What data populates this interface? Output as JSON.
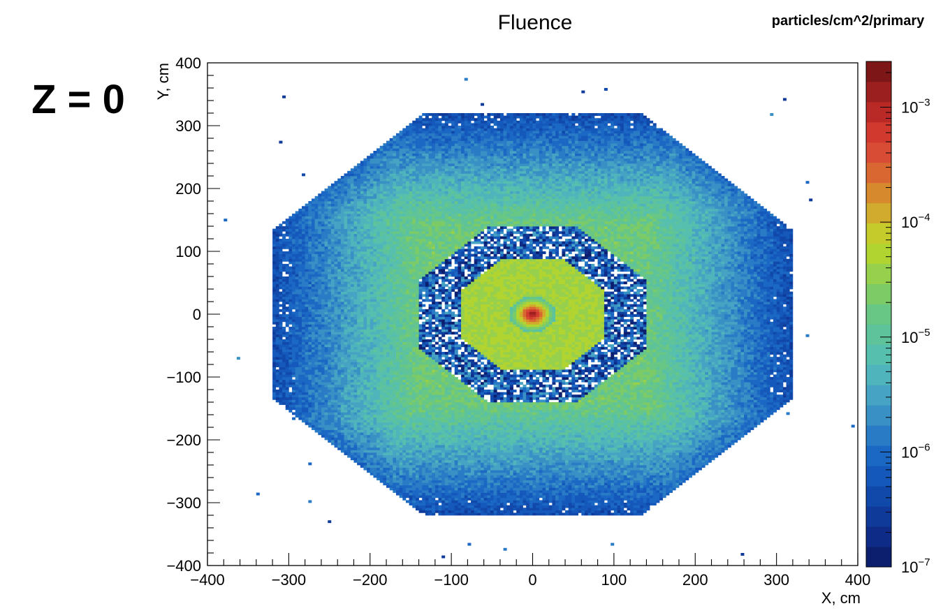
{
  "colors": {
    "background": "#ffffff",
    "axis": "#000000",
    "palette": [
      "#0c1f6f",
      "#0e2c87",
      "#0f3a9a",
      "#1149ab",
      "#1558bb",
      "#1b68c4",
      "#2a7bc6",
      "#3890c4",
      "#46a3c3",
      "#4fb4bb",
      "#56bfae",
      "#5ec39a",
      "#68c784",
      "#7ccb67",
      "#96d04c",
      "#b2d431",
      "#c5cb2a",
      "#d1ab2d",
      "#d78a2d",
      "#d86731",
      "#d84b34",
      "#d1392f",
      "#b92a27",
      "#9c1f1f",
      "#7d1616"
    ]
  },
  "annotations": {
    "title": "Fluence",
    "unit_label": "particles/cm^2/primary",
    "z_label": "Z = 0"
  },
  "chart_data": {
    "type": "heatmap",
    "title": "Fluence",
    "xlabel": "X, cm",
    "ylabel": "Y, cm",
    "xlim": [
      -400,
      400
    ],
    "ylim": [
      -400,
      400
    ],
    "x_ticks": [
      -400,
      -300,
      -200,
      -100,
      0,
      100,
      200,
      300,
      400
    ],
    "y_ticks": [
      -400,
      -300,
      -200,
      -100,
      0,
      100,
      200,
      300,
      400
    ],
    "colorbar": {
      "label": "particles/cm^2/primary",
      "scale": "log",
      "range": [
        1e-07,
        0.0025
      ],
      "ticks": [
        {
          "value": 1e-07,
          "base": "10",
          "exp": "−7"
        },
        {
          "value": 1e-06,
          "base": "10",
          "exp": "−6"
        },
        {
          "value": 1e-05,
          "base": "10",
          "exp": "−5"
        },
        {
          "value": 0.0001,
          "base": "10",
          "exp": "−4"
        },
        {
          "value": 0.001,
          "base": "10",
          "exp": "−3"
        }
      ]
    },
    "regions": [
      {
        "name": "outer octagon",
        "half_width_cm": 320,
        "chamfer_start_cm": 135,
        "fluence_range": [
          3e-07,
          2e-05
        ]
      },
      {
        "name": "inner sparse octagon",
        "half_width_cm": 140,
        "chamfer_start_cm": 55,
        "fluence_range": [
          1e-07,
          3e-06
        ]
      },
      {
        "name": "central detector octagon",
        "half_width_cm": 88,
        "chamfer_start_cm": 36,
        "fluence_level": 4e-05
      },
      {
        "name": "beam core",
        "radius_cm": 28,
        "peak_fluence": 0.002
      }
    ]
  }
}
